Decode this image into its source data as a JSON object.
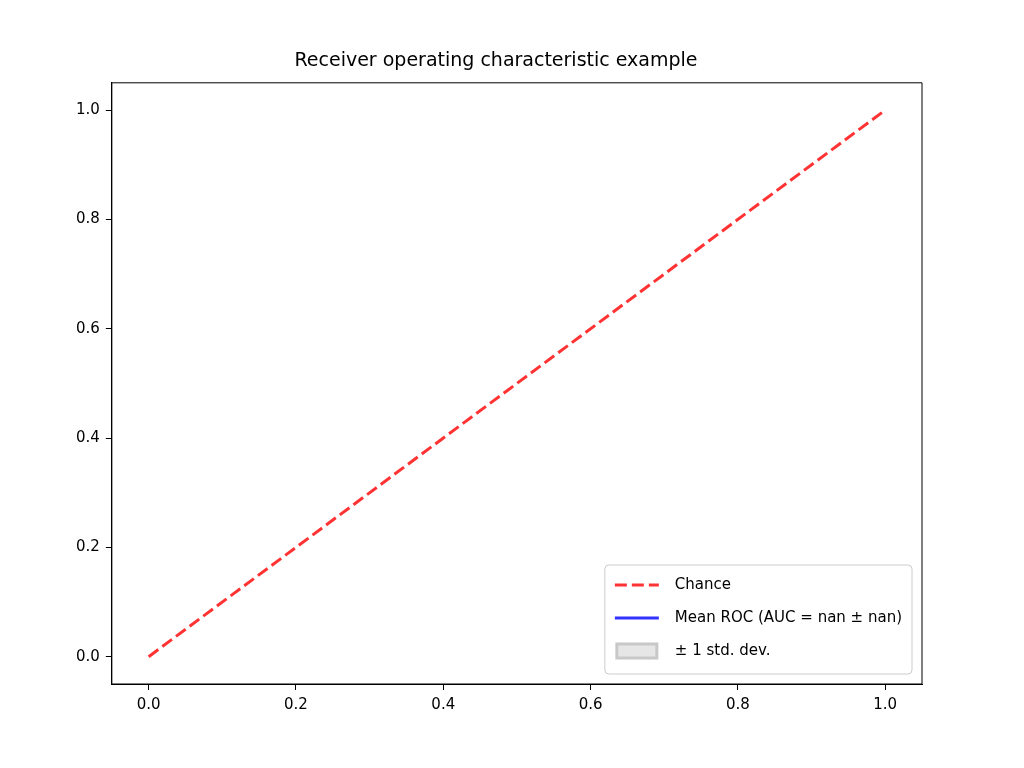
{
  "chart_data": {
    "type": "line",
    "title": "Receiver operating characteristic example",
    "x": [
      0,
      1
    ],
    "series": [
      {
        "name": "Chance",
        "type": "line",
        "color": "#ff3333",
        "line_style": "dashed",
        "values": [
          0,
          1
        ]
      },
      {
        "name": "Mean ROC (AUC = nan ± nan)",
        "type": "line",
        "color": "#3333ff",
        "line_style": "solid",
        "values": [
          null,
          null
        ]
      },
      {
        "name": "± 1 std. dev.",
        "type": "area",
        "color": "#e6e6e6",
        "values": [
          null,
          null
        ]
      }
    ],
    "xlim": [
      -0.05,
      1.05
    ],
    "ylim": [
      -0.05,
      1.05
    ],
    "xticks": [
      {
        "value": 0,
        "label": "0.0"
      },
      {
        "value": 0.2,
        "label": "0.2"
      },
      {
        "value": 0.4,
        "label": "0.4"
      },
      {
        "value": 0.6,
        "label": "0.6"
      },
      {
        "value": 0.8,
        "label": "0.8"
      },
      {
        "value": 1,
        "label": "1.0"
      }
    ],
    "yticks": [
      {
        "value": 0,
        "label": "0.0"
      },
      {
        "value": 0.2,
        "label": "0.2"
      },
      {
        "value": 0.4,
        "label": "0.4"
      },
      {
        "value": 0.6,
        "label": "0.6"
      },
      {
        "value": 0.8,
        "label": "0.8"
      },
      {
        "value": 1,
        "label": "1.0"
      }
    ],
    "grid": false,
    "legend": "bottom right"
  }
}
